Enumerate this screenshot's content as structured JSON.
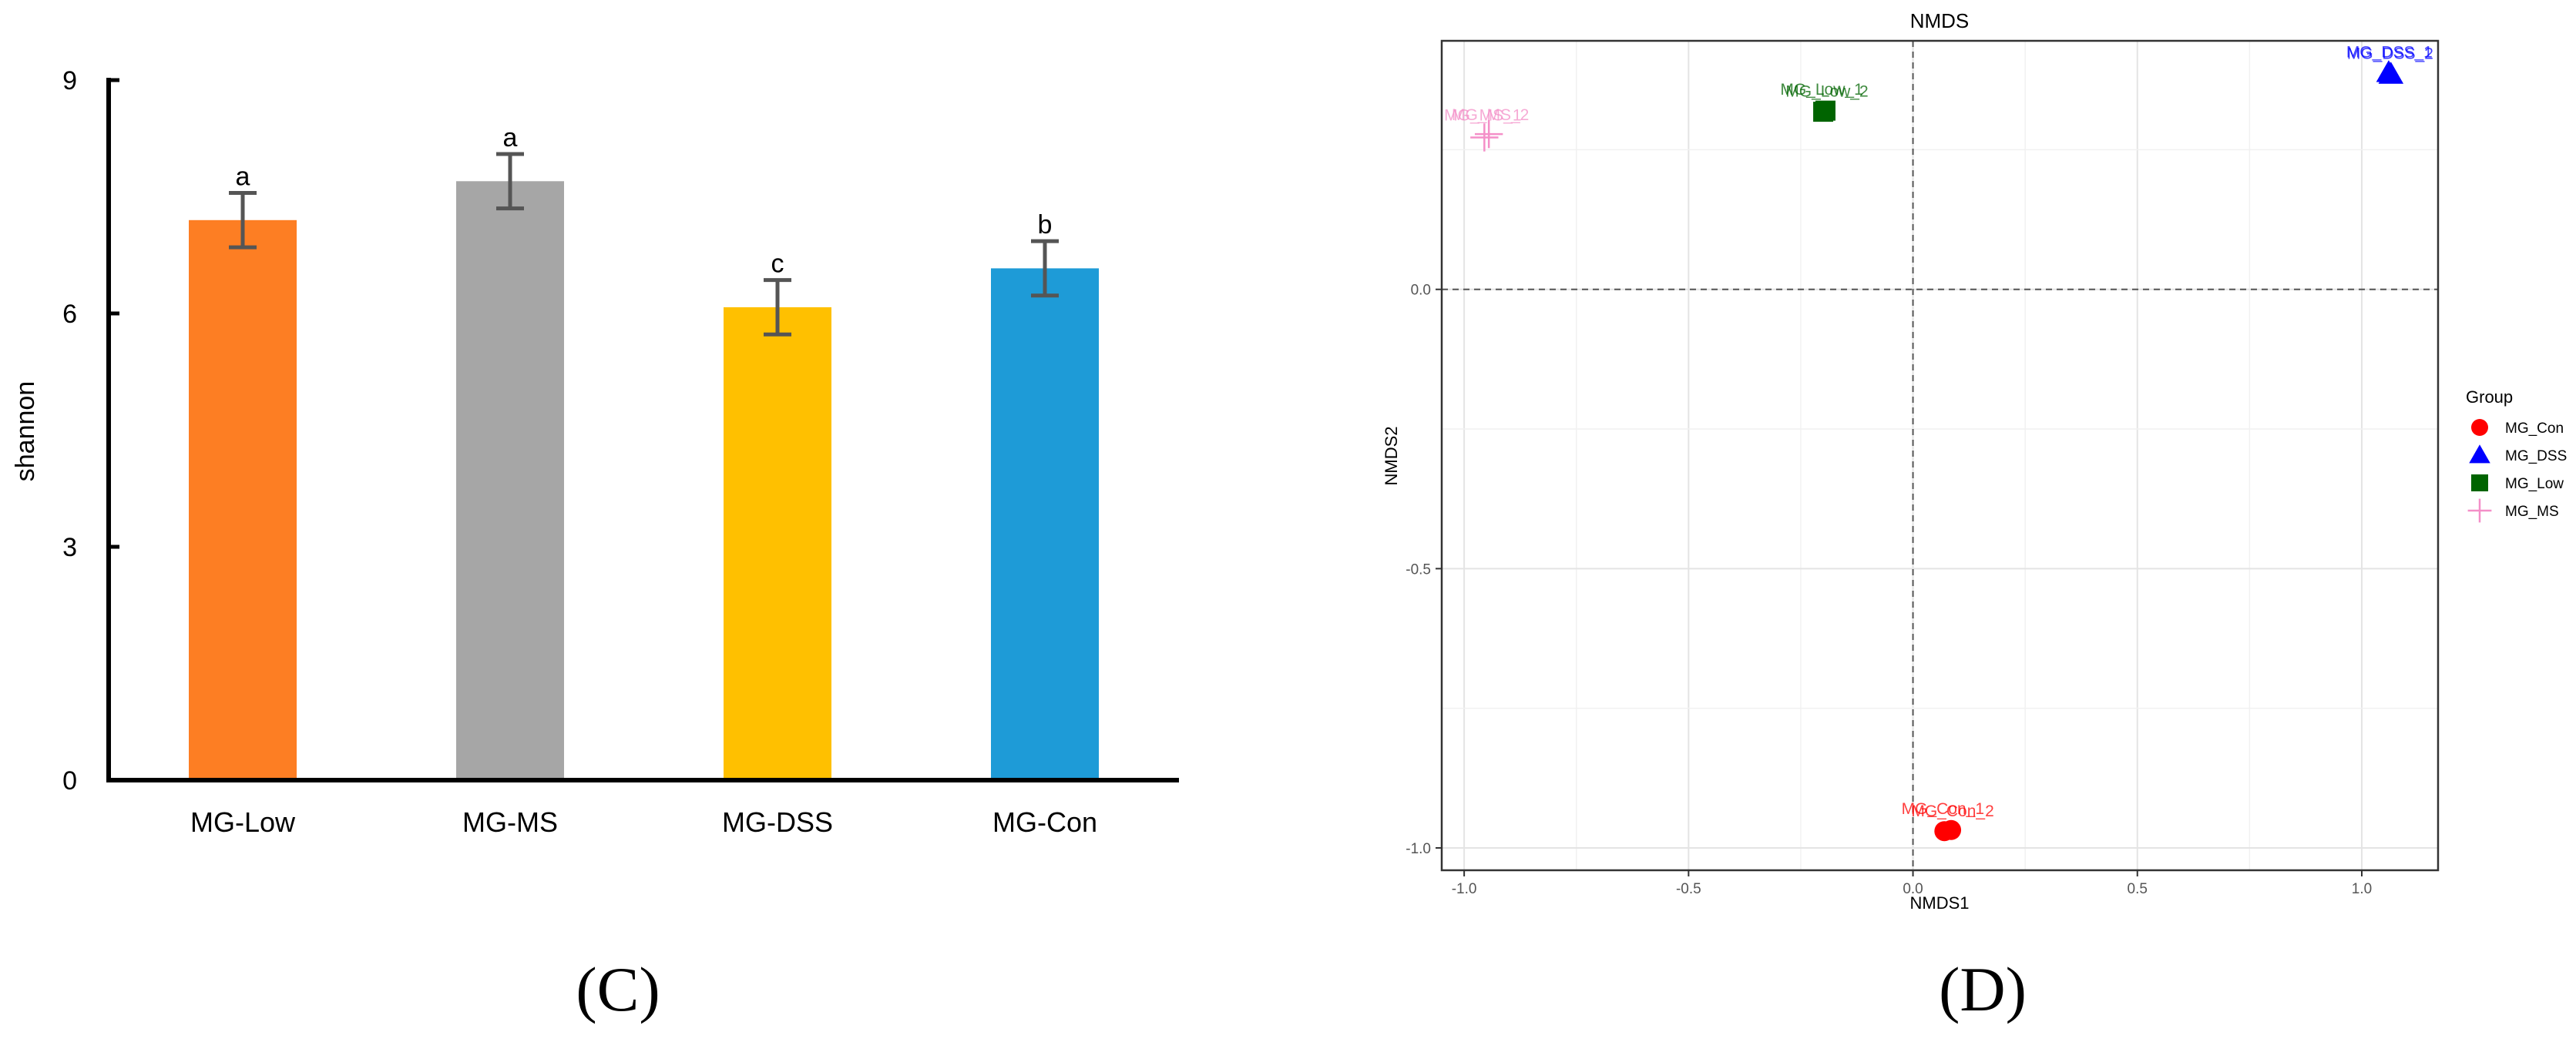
{
  "chart_data": [
    {
      "type": "bar",
      "panel_label": "(C)",
      "ylabel": "shannon",
      "ylim": [
        0,
        9
      ],
      "yticks": [
        0,
        3,
        6,
        9
      ],
      "categories": [
        "MG-Low",
        "MG-MS",
        "MG-DSS",
        "MG-Con"
      ],
      "values": [
        7.2,
        7.7,
        6.08,
        6.58
      ],
      "errors": [
        0.35,
        0.35,
        0.35,
        0.35
      ],
      "significance_letters": [
        "a",
        "a",
        "c",
        "b"
      ],
      "colors": [
        "#FD7E23",
        "#A6A6A6",
        "#FFC000",
        "#1E9BD7"
      ],
      "grid": false
    },
    {
      "type": "scatter",
      "panel_label": "(D)",
      "title": "NMDS",
      "xlabel": "NMDS1",
      "ylabel": "NMDS2",
      "xlim": [
        -1.05,
        1.17
      ],
      "ylim": [
        -1.04,
        0.445
      ],
      "xticks": [
        -1.0,
        -0.5,
        0.0,
        0.5,
        1.0
      ],
      "xtick_labels": [
        "-1.0",
        "-0.5",
        "0.0",
        "0.5",
        "1.0"
      ],
      "yticks": [
        -1.0,
        -0.5,
        0.0
      ],
      "ytick_labels": [
        "-1.0",
        "-0.5",
        "0.0"
      ],
      "grid": true,
      "reference_lines": {
        "x": 0,
        "y": 0
      },
      "legend_title": "Group",
      "legend_position": "right",
      "series": [
        {
          "name": "MG_Con",
          "color": "#FF0000",
          "shape": "circle",
          "points": [
            [
              0.07,
              -0.97
            ],
            [
              0.085,
              -0.968
            ]
          ],
          "labels": [
            "MG_Con_1",
            "MG_Con_2"
          ]
        },
        {
          "name": "MG_DSS",
          "color": "#0000FF",
          "shape": "triangle",
          "points": [
            [
              1.065,
              0.385
            ],
            [
              1.06,
              0.388
            ]
          ],
          "labels": [
            "MG_DSS_1",
            "MG_DSS_2"
          ]
        },
        {
          "name": "MG_Low",
          "color": "#006400",
          "shape": "square",
          "points": [
            [
              -0.2,
              0.318
            ],
            [
              -0.195,
              0.32
            ]
          ],
          "labels": [
            "MG_Low_1",
            "MG_Low_2"
          ]
        },
        {
          "name": "MG_MS",
          "color": "#F48FC8",
          "shape": "cross",
          "points": [
            [
              -0.955,
              0.272
            ],
            [
              -0.945,
              0.278
            ]
          ],
          "labels": [
            "MG_MS_1",
            "MG_MS_2"
          ]
        }
      ]
    }
  ]
}
